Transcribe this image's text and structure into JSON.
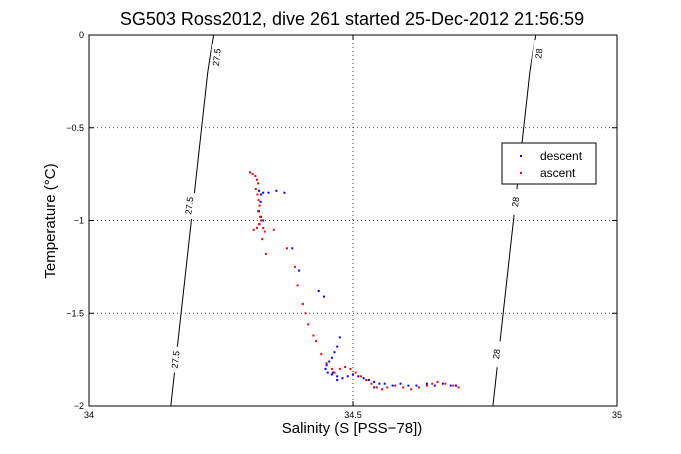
{
  "chart_data": {
    "type": "scatter",
    "title": "SG503 Ross2012, dive 261 started 25-Dec-2012 21:56:59",
    "xlabel": "Salinity (S [PSS−78])",
    "ylabel": "Temperature (°C)",
    "xlim": [
      34,
      35
    ],
    "ylim": [
      -2,
      0
    ],
    "xticks": [
      34,
      34.5,
      35
    ],
    "yticks": [
      -2,
      -1.5,
      -1,
      -0.5,
      0
    ],
    "xtick_labels": [
      "34",
      "34.5",
      "35"
    ],
    "ytick_labels": [
      "−2",
      "−1.5",
      "−1",
      "−0.5",
      "0"
    ],
    "grid": true,
    "legend": {
      "position": "right",
      "entries": [
        "descent",
        "ascent"
      ]
    },
    "colors": {
      "descent": "#0000ff",
      "ascent": "#ff0000",
      "contour": "#000000"
    },
    "contours": [
      {
        "label": "27.5",
        "points": [
          [
            34.155,
            -2.0
          ],
          [
            34.225,
            -0.2
          ],
          [
            34.236,
            0.0
          ]
        ],
        "label_at": [
          [
            34.242,
            -0.12
          ],
          [
            34.19,
            -0.92
          ],
          [
            34.164,
            -1.75
          ]
        ]
      },
      {
        "label": "28",
        "points": [
          [
            34.765,
            -2.0
          ],
          [
            34.835,
            -0.2
          ],
          [
            34.846,
            0.0
          ]
        ],
        "label_at": [
          [
            34.852,
            -0.1
          ],
          [
            34.808,
            -0.9
          ],
          [
            34.772,
            -1.72
          ]
        ]
      }
    ],
    "series": [
      {
        "name": "descent",
        "points": [
          [
            34.322,
            -0.84
          ],
          [
            34.326,
            -0.86
          ],
          [
            34.33,
            -0.85
          ],
          [
            34.325,
            -0.9
          ],
          [
            34.322,
            -0.95
          ],
          [
            34.326,
            -0.98
          ],
          [
            34.33,
            -1.0
          ],
          [
            34.323,
            -1.02
          ],
          [
            34.34,
            -0.85
          ],
          [
            34.355,
            -0.84
          ],
          [
            34.37,
            -0.85
          ],
          [
            34.385,
            -1.15
          ],
          [
            34.398,
            -1.27
          ],
          [
            34.435,
            -1.38
          ],
          [
            34.445,
            -1.41
          ],
          [
            34.475,
            -1.63
          ],
          [
            34.47,
            -1.68
          ],
          [
            34.465,
            -1.71
          ],
          [
            34.46,
            -1.74
          ],
          [
            34.455,
            -1.76
          ],
          [
            34.45,
            -1.78
          ],
          [
            34.448,
            -1.8
          ],
          [
            34.452,
            -1.82
          ],
          [
            34.46,
            -1.83
          ],
          [
            34.47,
            -1.84
          ],
          [
            34.48,
            -1.85
          ],
          [
            34.49,
            -1.84
          ],
          [
            34.5,
            -1.83
          ],
          [
            34.51,
            -1.84
          ],
          [
            34.52,
            -1.85
          ],
          [
            34.53,
            -1.86
          ],
          [
            34.54,
            -1.87
          ],
          [
            34.55,
            -1.88
          ],
          [
            34.56,
            -1.88
          ],
          [
            34.575,
            -1.89
          ],
          [
            34.59,
            -1.88
          ],
          [
            34.605,
            -1.89
          ],
          [
            34.62,
            -1.89
          ],
          [
            34.64,
            -1.88
          ],
          [
            34.655,
            -1.89
          ],
          [
            34.67,
            -1.88
          ],
          [
            34.685,
            -1.89
          ],
          [
            34.695,
            -1.89
          ],
          [
            34.54,
            -1.9
          ],
          [
            34.47,
            -1.86
          ],
          [
            34.462,
            -1.82
          ]
        ]
      },
      {
        "name": "ascent",
        "points": [
          [
            34.305,
            -0.74
          ],
          [
            34.31,
            -0.75
          ],
          [
            34.315,
            -0.76
          ],
          [
            34.318,
            -0.78
          ],
          [
            34.32,
            -0.8
          ],
          [
            34.316,
            -0.83
          ],
          [
            34.319,
            -0.86
          ],
          [
            34.321,
            -0.89
          ],
          [
            34.323,
            -0.92
          ],
          [
            34.32,
            -0.95
          ],
          [
            34.324,
            -0.98
          ],
          [
            34.326,
            -1.0
          ],
          [
            34.322,
            -1.02
          ],
          [
            34.318,
            -1.04
          ],
          [
            34.312,
            -1.05
          ],
          [
            34.33,
            -1.04
          ],
          [
            34.333,
            -1.06
          ],
          [
            34.328,
            -1.1
          ],
          [
            34.335,
            -1.18
          ],
          [
            34.35,
            -1.05
          ],
          [
            34.375,
            -1.15
          ],
          [
            34.39,
            -1.25
          ],
          [
            34.395,
            -1.35
          ],
          [
            34.405,
            -1.45
          ],
          [
            34.41,
            -1.5
          ],
          [
            34.415,
            -1.56
          ],
          [
            34.425,
            -1.62
          ],
          [
            34.43,
            -1.65
          ],
          [
            34.44,
            -1.72
          ],
          [
            34.45,
            -1.77
          ],
          [
            34.46,
            -1.8
          ],
          [
            34.465,
            -1.82
          ],
          [
            34.475,
            -1.8
          ],
          [
            34.485,
            -1.79
          ],
          [
            34.495,
            -1.8
          ],
          [
            34.505,
            -1.82
          ],
          [
            34.515,
            -1.84
          ],
          [
            34.525,
            -1.86
          ],
          [
            34.535,
            -1.88
          ],
          [
            34.545,
            -1.9
          ],
          [
            34.555,
            -1.91
          ],
          [
            34.565,
            -1.9
          ],
          [
            34.58,
            -1.89
          ],
          [
            34.595,
            -1.9
          ],
          [
            34.61,
            -1.91
          ],
          [
            34.625,
            -1.9
          ],
          [
            34.64,
            -1.89
          ],
          [
            34.65,
            -1.88
          ],
          [
            34.66,
            -1.87
          ],
          [
            34.675,
            -1.88
          ],
          [
            34.69,
            -1.89
          ],
          [
            34.7,
            -1.9
          ]
        ]
      }
    ]
  }
}
